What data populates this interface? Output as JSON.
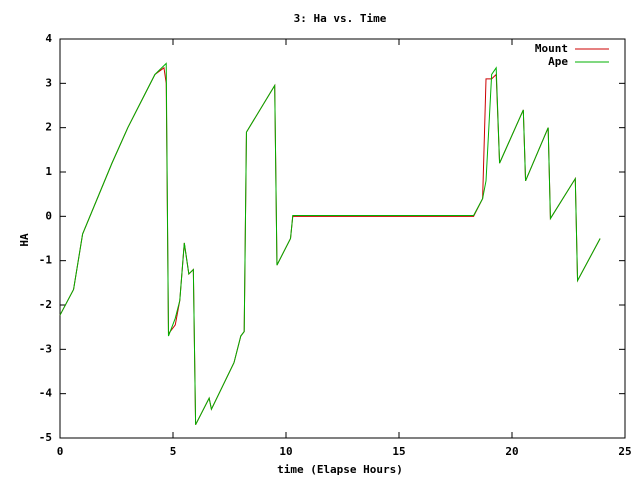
{
  "chart_data": {
    "type": "line",
    "title": "3: Ha vs. Time",
    "x_label": "time (Elapse Hours)",
    "y_label": "HA",
    "x": [
      0,
      0.6,
      1.0,
      2.3,
      3.0,
      3.5,
      4.2,
      4.6,
      4.7,
      4.8,
      5.1,
      5.3,
      5.5,
      5.7,
      5.9,
      6.0,
      6.6,
      6.7,
      7.7,
      8.0,
      8.15,
      8.25,
      9.5,
      9.6,
      10.2,
      10.3,
      18.3,
      18.7,
      18.85,
      19.1,
      19.3,
      19.45,
      20.5,
      20.6,
      21.6,
      21.7,
      22.8,
      22.9,
      23.9
    ],
    "series": [
      {
        "name": "Mount",
        "color": "#cc0000",
        "values": [
          -2.23,
          -1.65,
          -0.4,
          1.2,
          2.0,
          2.5,
          3.2,
          3.35,
          3.0,
          -2.65,
          -2.45,
          -1.9,
          -0.6,
          -1.3,
          -1.2,
          -4.7,
          -4.1,
          -4.35,
          -3.3,
          -2.7,
          -2.6,
          1.9,
          2.95,
          -1.1,
          -0.5,
          0.0,
          0.0,
          0.4,
          3.1,
          3.1,
          3.2,
          1.2,
          2.4,
          0.8,
          2.0,
          -0.05,
          0.85,
          -1.45,
          -0.5
        ]
      },
      {
        "name": "Ape",
        "color": "#00b000",
        "values": [
          -2.23,
          -1.65,
          -0.4,
          1.2,
          2.0,
          2.5,
          3.2,
          3.4,
          3.45,
          -2.7,
          -2.3,
          -1.9,
          -0.6,
          -1.3,
          -1.2,
          -4.7,
          -4.1,
          -4.35,
          -3.3,
          -2.7,
          -2.6,
          1.9,
          2.95,
          -1.1,
          -0.5,
          0.02,
          0.02,
          0.4,
          0.8,
          3.2,
          3.35,
          1.2,
          2.4,
          0.8,
          2.0,
          -0.05,
          0.85,
          -1.45,
          -0.5
        ]
      }
    ],
    "xlim": [
      0,
      25
    ],
    "xticks": [
      0,
      5,
      10,
      15,
      20,
      25
    ],
    "ylim": [
      -5,
      4
    ],
    "yticks": [
      -5,
      -4,
      -3,
      -2,
      -1,
      0,
      1,
      2,
      3,
      4
    ],
    "legend": "top-right"
  }
}
